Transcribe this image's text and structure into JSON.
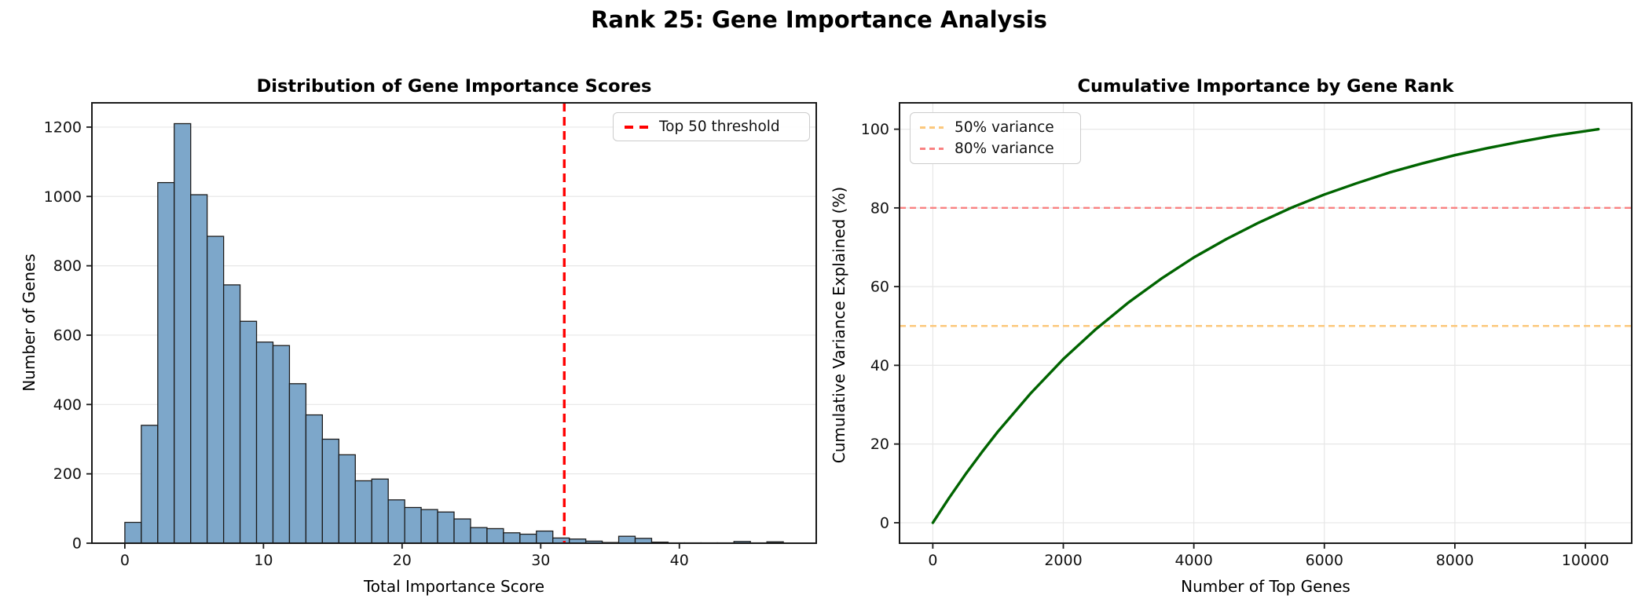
{
  "suptitle": "Rank 25: Gene Importance Analysis",
  "colors": {
    "bar_fill": "#7DA7CA",
    "bar_edge": "#1c1c1c",
    "threshold_red": "#ff0000",
    "curve_green": "#006400",
    "hline_orange": "#fcc87c",
    "hline_red": "#f98181",
    "grid": "#e7e7e7",
    "spine": "#1a1a1a"
  },
  "chart_data": [
    {
      "type": "bar",
      "title": "Distribution of Gene Importance Scores",
      "xlabel": "Total Importance Score",
      "ylabel": "Number of Genes",
      "bin_start": 0,
      "bin_width": 1.1875,
      "counts": [
        60,
        340,
        1040,
        1210,
        1005,
        885,
        745,
        640,
        580,
        570,
        460,
        370,
        300,
        255,
        180,
        185,
        125,
        103,
        97,
        90,
        70,
        45,
        42,
        30,
        26,
        35,
        15,
        12,
        6,
        2,
        20,
        14,
        3,
        1,
        1,
        1,
        1,
        5,
        1,
        4
      ],
      "xticks": [
        0,
        10,
        20,
        30,
        40
      ],
      "yticks": [
        0,
        200,
        400,
        600,
        800,
        1000,
        1200
      ],
      "xlim": [
        -2.375,
        49.875
      ],
      "ylim": [
        0,
        1270
      ],
      "grid": "y",
      "threshold_line": {
        "x": 31.7,
        "style": "dashed",
        "label": "Top 50 threshold"
      },
      "legend": {
        "position": "top-right",
        "entries": [
          {
            "label": "Top 50 threshold",
            "color": "#ff0000"
          }
        ]
      }
    },
    {
      "type": "line",
      "title": "Cumulative Importance by Gene Rank",
      "xlabel": "Number of Top Genes",
      "ylabel": "Cumulative Variance Explained (%)",
      "x": [
        0,
        250,
        500,
        750,
        1000,
        1500,
        2000,
        2500,
        3000,
        3500,
        4000,
        4500,
        5000,
        5500,
        6000,
        6500,
        7000,
        7500,
        8000,
        8500,
        9000,
        9500,
        10000,
        10200
      ],
      "y": [
        0,
        6.3,
        12.3,
        17.9,
        23.2,
        32.9,
        41.6,
        49.2,
        56.0,
        62.0,
        67.4,
        72.1,
        76.3,
        80.1,
        83.4,
        86.3,
        89.0,
        91.3,
        93.4,
        95.2,
        96.8,
        98.3,
        99.5,
        100.0
      ],
      "xticks": [
        0,
        2000,
        4000,
        6000,
        8000,
        10000
      ],
      "yticks": [
        0,
        20,
        40,
        60,
        80,
        100
      ],
      "xlim": [
        -510,
        10710
      ],
      "ylim": [
        -5.2,
        106.7
      ],
      "grid": "both",
      "hlines": [
        {
          "y": 50,
          "label": "50% variance"
        },
        {
          "y": 80,
          "label": "80% variance"
        }
      ],
      "legend": {
        "position": "top-left",
        "entries": [
          {
            "label": "50% variance",
            "color": "#fcc87c"
          },
          {
            "label": "80% variance",
            "color": "#f98181"
          }
        ]
      }
    }
  ]
}
